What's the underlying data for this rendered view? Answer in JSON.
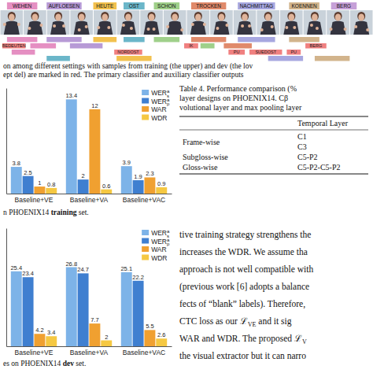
{
  "strip": {
    "frames": 16,
    "glosses": [
      {
        "label": "WEHEN",
        "color": "#e58fc2",
        "start": 0.3,
        "end": 1.6
      },
      {
        "label": "AUFLOESEN",
        "color": "#b79ad6",
        "start": 2.0,
        "end": 3.5
      },
      {
        "label": "HEUTE",
        "color": "#f2c14e",
        "start": 4.0,
        "end": 5.0
      },
      {
        "label": "OST",
        "color": "#6bb6c9",
        "start": 5.3,
        "end": 6.2
      },
      {
        "label": "SCHON",
        "color": "#9fd08a",
        "start": 6.6,
        "end": 7.7
      },
      {
        "label": "TROCKEN",
        "color": "#e08a6b",
        "start": 8.2,
        "end": 9.7
      },
      {
        "label": "NACHMITTAG",
        "color": "#a7a7e0",
        "start": 10.2,
        "end": 11.8
      },
      {
        "label": "KOENNEN",
        "color": "#d2b48c",
        "start": 12.4,
        "end": 13.7
      },
      {
        "label": "BERG",
        "color": "#c6a0d8",
        "start": 14.2,
        "end": 15.3
      }
    ],
    "alignment": [
      [
        {
          "color": "#e58fc2",
          "start": 0.3,
          "end": 1.6
        },
        {
          "color": "#b79ad6",
          "start": 2.0,
          "end": 3.5
        },
        {
          "color": "#f2c14e",
          "start": 4.0,
          "end": 5.0
        },
        {
          "color": "#6bb6c9",
          "start": 5.3,
          "end": 6.2
        },
        {
          "color": "#9fd08a",
          "start": 6.6,
          "end": 7.7
        },
        {
          "color": "#e08a6b",
          "start": 8.2,
          "end": 9.7
        },
        {
          "color": "#a7a7e0",
          "start": 10.2,
          "end": 11.8
        },
        {
          "color": "#d2b48c",
          "start": 12.4,
          "end": 13.7
        }
      ],
      [
        {
          "label": "BEDEUTEN",
          "color": "#f08080",
          "start": 0.1,
          "end": 1.1
        },
        {
          "color": "#e58fc2",
          "start": 1.3,
          "end": 2.4
        },
        {
          "color": "#b79ad6",
          "start": 3.0,
          "end": 4.4
        },
        {
          "label": "IK",
          "color": "#f08080",
          "start": 7.9,
          "end": 8.5
        },
        {
          "color": "#9fd08a",
          "start": 8.6,
          "end": 9.2
        },
        {
          "color": "#e08a6b",
          "start": 9.6,
          "end": 10.8
        },
        {
          "label": "BERG",
          "color": "#f08080",
          "start": 13.1,
          "end": 14.0
        }
      ],
      [
        {
          "color": "#e58fc2",
          "start": 0.5,
          "end": 1.5
        },
        {
          "label": "NORDOST",
          "color": "#f08080",
          "start": 4.9,
          "end": 6.1
        },
        {
          "label": "PU",
          "color": "#f08080",
          "start": 9.8,
          "end": 10.5
        },
        {
          "label": "SUEDOST",
          "color": "#f08080",
          "start": 10.7,
          "end": 12.1
        },
        {
          "label": "PU",
          "color": "#f08080",
          "start": 12.3,
          "end": 12.9
        }
      ],
      [
        {
          "color": "#6bb6c9",
          "start": 2.0,
          "end": 3.0
        },
        {
          "color": "#f2c14e",
          "start": 5.0,
          "end": 6.5
        },
        {
          "color": "#a7a7e0",
          "start": 11.5,
          "end": 13.0
        },
        {
          "color": "#d2b48c",
          "start": 13.5,
          "end": 15.0
        }
      ]
    ]
  },
  "strip_caption": [
    [
      {
        "t": "on among different settings with samples from training (the upper) and dev (the lov"
      }
    ],
    [
      {
        "t": "ept del) are marked in red. The primary classifier and auxiliary classifier outputs"
      }
    ]
  ],
  "chart_data": [
    {
      "type": "bar",
      "categories": [
        "Baseline+VE",
        "Baseline+VA",
        "Baseline+VAC"
      ],
      "series": [
        {
          "name": "WER",
          "sup": "a",
          "sub": "s",
          "color": "#7db3e8",
          "values": [
            3.8,
            13.4,
            3.9
          ]
        },
        {
          "name": "WER",
          "sup": "a",
          "sub": "p",
          "color": "#3f7fd0",
          "values": [
            2.5,
            2.0,
            1.9
          ]
        },
        {
          "name": "WAR",
          "color": "#f0a030",
          "values": [
            1.0,
            12.0,
            2.3
          ]
        },
        {
          "name": "WDR",
          "color": "#f5c842",
          "values": [
            0.8,
            0.6,
            0.9
          ]
        }
      ],
      "ylim": [
        0,
        15
      ],
      "yticks": [],
      "tick_labels": "x",
      "grid": false,
      "legend": "upper right",
      "data_labels": true
    },
    {
      "type": "bar",
      "categories": [
        "Baseline+VE",
        "Baseline+VA",
        "Baseline+VAC"
      ],
      "series": [
        {
          "name": "WER",
          "sup": "a",
          "sub": "s",
          "color": "#7db3e8",
          "values": [
            25.4,
            26.8,
            25.1
          ]
        },
        {
          "name": "WER",
          "sup": "a",
          "sub": "p",
          "color": "#3f7fd0",
          "values": [
            23.4,
            24.7,
            22.2
          ]
        },
        {
          "name": "WAR",
          "color": "#f0a030",
          "values": [
            4.2,
            7.7,
            5.5
          ]
        },
        {
          "name": "WDR",
          "color": "#f5c842",
          "values": [
            3.4,
            2.0,
            2.6
          ]
        }
      ],
      "ylim": [
        0,
        40
      ],
      "yticks": [],
      "tick_labels": "x",
      "grid": false,
      "legend": "upper right",
      "data_labels": true
    }
  ],
  "chart_captions": [
    [
      {
        "t": "n PHOENIX14 "
      },
      {
        "t": "training",
        "bold": true
      },
      {
        "t": " set."
      }
    ],
    [
      {
        "t": "es on PHOENIX14 "
      },
      {
        "t": "dev",
        "bold": true
      },
      {
        "t": " set."
      }
    ]
  ],
  "table": {
    "caption": [
      "Table 4. Performance comparison (%",
      "layer designs on PHOENIX14. Cβ",
      "volutional layer and max pooling layer"
    ],
    "header": [
      null,
      "Temporal Layer"
    ],
    "rows": [
      [
        "Frame-wise",
        "C1"
      ],
      [
        null,
        "C3"
      ],
      [
        "Subgloss-wise",
        "C5-P2"
      ],
      [
        "Gloss-wise",
        "C5-P2-C5-P2"
      ]
    ]
  },
  "text": [
    [
      {
        "t": "tive training strategy strengthens the"
      }
    ],
    [
      {
        "t": "increases the WDR. We assume tha"
      }
    ],
    [
      {
        "t": "approach is not well compatible with"
      }
    ],
    [
      {
        "t": "(previous work [6] adopts a balance"
      }
    ],
    [
      {
        "t": "fects of “blank” labels). Therefore,"
      }
    ],
    [
      {
        "t": "CTC loss as our "
      },
      {
        "t": "ℒ"
      },
      {
        "t": "VE",
        "sub": true
      },
      {
        "t": " and it sig"
      }
    ],
    [
      {
        "t": "WAR and WDR. The proposed "
      },
      {
        "t": "ℒ"
      },
      {
        "t": "V",
        "sub": true
      }
    ],
    [
      {
        "t": "the visual extractor but it can narro"
      }
    ]
  ]
}
